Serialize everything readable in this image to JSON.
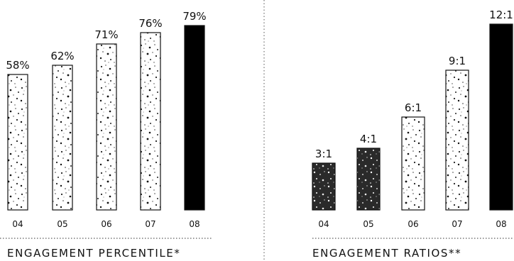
{
  "chart_data": [
    {
      "type": "bar",
      "title": "ENGAGEMENT PERCENTILE*",
      "categories": [
        "04",
        "05",
        "06",
        "07",
        "08"
      ],
      "values": [
        58,
        62,
        71,
        76,
        79
      ],
      "data_labels": [
        "58%",
        "62%",
        "71%",
        "76%",
        "79%"
      ],
      "ylim": [
        0,
        79
      ],
      "grid": false,
      "highlight_index": 4,
      "fill": "speckled",
      "highlight_fill": "#000000"
    },
    {
      "type": "bar",
      "title": "ENGAGEMENT RATIOS**",
      "categories": [
        "04",
        "05",
        "06",
        "07",
        "08"
      ],
      "values": [
        3,
        4,
        6,
        9,
        12
      ],
      "data_labels": [
        "3:1",
        "4:1",
        "6:1",
        "9:1",
        "12:1"
      ],
      "ylim": [
        0,
        12
      ],
      "grid": false,
      "highlight_index": 4,
      "fill": "speckled",
      "highlight_fill": "#000000"
    }
  ]
}
